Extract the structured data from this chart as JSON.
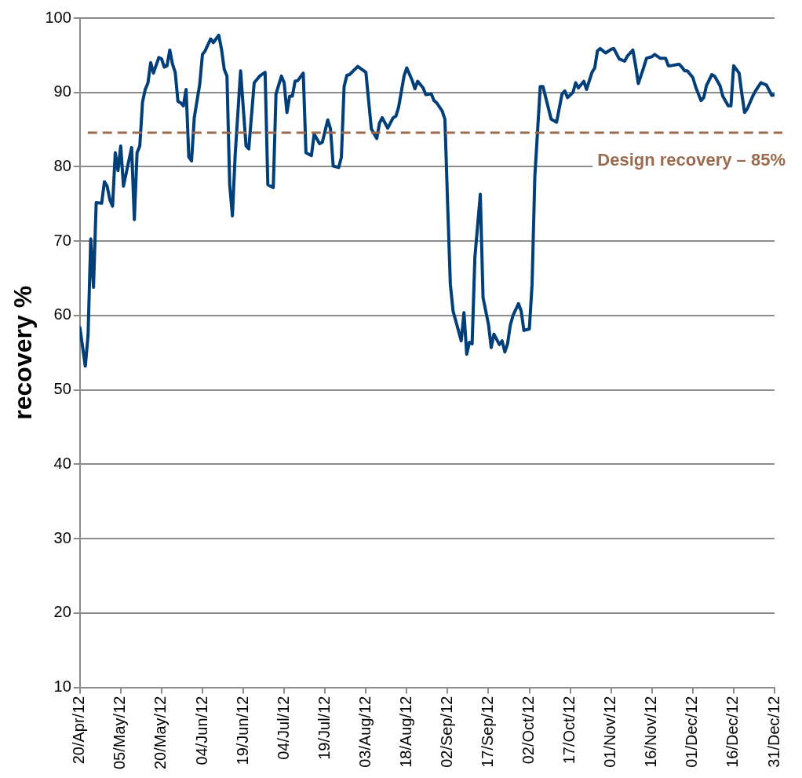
{
  "chart_data": {
    "type": "line",
    "ylabel": "recovery %",
    "ylim": [
      10,
      100
    ],
    "yticks": [
      10,
      20,
      30,
      40,
      50,
      60,
      70,
      80,
      90,
      100
    ],
    "xlim": [
      "--04-20",
      "--12-31"
    ],
    "xticks": [
      {
        "value": "--04-20",
        "label": "20/Apr/12"
      },
      {
        "value": "--05-05",
        "label": "05/May/12"
      },
      {
        "value": "--05-20",
        "label": "20/May/12"
      },
      {
        "value": "--06-04",
        "label": "04/Jun/12"
      },
      {
        "value": "--06-19",
        "label": "19/Jun/12"
      },
      {
        "value": "--07-04",
        "label": "04/Jul/12"
      },
      {
        "value": "--07-19",
        "label": "19/Jul/12"
      },
      {
        "value": "--08-03",
        "label": "03/Aug/12"
      },
      {
        "value": "--08-18",
        "label": "18/Aug/12"
      },
      {
        "value": "--09-02",
        "label": "02/Sep/12"
      },
      {
        "value": "--09-17",
        "label": "17/Sep/12"
      },
      {
        "value": "--10-02",
        "label": "02/Oct/12"
      },
      {
        "value": "--10-17",
        "label": "17/Oct/12"
      },
      {
        "value": "--11-01",
        "label": "01/Nov/12"
      },
      {
        "value": "--11-16",
        "label": "16/Nov/12"
      },
      {
        "value": "--12-01",
        "label": "01/Dec/12"
      },
      {
        "value": "--12-16",
        "label": "16/Dec/12"
      },
      {
        "value": "--12-31",
        "label": "31/Dec/12"
      }
    ],
    "grid": "y",
    "marker": "none",
    "line_style": "solid",
    "x": [
      "--04-20",
      "--04-22",
      "--04-23",
      "--04-24",
      "--04-25",
      "--04-26",
      "--04-28",
      "--04-29",
      "--04-30",
      "--05-01",
      "--05-02",
      "--05-03",
      "--05-04",
      "--05-05",
      "--05-06",
      "--05-09",
      "--05-10",
      "--05-11",
      "--05-12",
      "--05-13",
      "--05-14",
      "--05-15",
      "--05-16",
      "--05-17",
      "--05-19",
      "--05-20",
      "--05-21",
      "--05-22",
      "--05-23",
      "--05-24",
      "--05-25",
      "--05-26",
      "--05-27",
      "--05-28",
      "--05-29",
      "--05-30",
      "--05-31",
      "--06-01",
      "--06-03",
      "--06-04",
      "--06-05",
      "--06-07",
      "--06-08",
      "--06-10",
      "--06-11",
      "--06-12",
      "--06-13",
      "--06-14",
      "--06-15",
      "--06-16",
      "--06-18",
      "--06-20",
      "--06-21",
      "--06-23",
      "--06-25",
      "--06-27",
      "--06-28",
      "--06-30",
      "--07-01",
      "--07-03",
      "--07-04",
      "--07-05",
      "--07-06",
      "--07-07",
      "--07-08",
      "--07-09",
      "--07-11",
      "--07-12",
      "--07-14",
      "--07-15",
      "--07-17",
      "--07-18",
      "--07-20",
      "--07-21",
      "--07-22",
      "--07-24",
      "--07-25",
      "--07-26",
      "--07-27",
      "--07-28",
      "--07-31",
      "--08-03",
      "--08-05",
      "--08-07",
      "--08-08",
      "--08-09",
      "--08-11",
      "--08-12",
      "--08-13",
      "--08-14",
      "--08-15",
      "--08-17",
      "--08-18",
      "--08-20",
      "--08-21",
      "--08-22",
      "--08-24",
      "--08-25",
      "--08-27",
      "--08-28",
      "--08-29",
      "--08-31",
      "--09-01",
      "--09-02",
      "--09-03",
      "--09-04",
      "--09-07",
      "--09-08",
      "--09-09",
      "--09-10",
      "--09-11",
      "--09-12",
      "--09-14",
      "--09-15",
      "--09-17",
      "--09-18",
      "--09-19",
      "--09-21",
      "--09-22",
      "--09-23",
      "--09-24",
      "--09-25",
      "--09-26",
      "--09-28",
      "--09-29",
      "--09-30",
      "--10-02",
      "--10-03",
      "--10-04",
      "--10-06",
      "--10-07",
      "--10-10",
      "--10-12",
      "--10-14",
      "--10-15",
      "--10-16",
      "--10-18",
      "--10-19",
      "--10-20",
      "--10-22",
      "--10-23",
      "--10-25",
      "--10-26",
      "--10-27",
      "--10-28",
      "--10-30",
      "--11-01",
      "--11-02",
      "--11-04",
      "--11-06",
      "--11-07",
      "--11-09",
      "--11-10",
      "--11-11",
      "--11-13",
      "--11-14",
      "--11-16",
      "--11-17",
      "--11-19",
      "--11-21",
      "--11-22",
      "--11-23",
      "--11-26",
      "--11-27",
      "--11-28",
      "--11-29",
      "--12-01",
      "--12-02",
      "--12-04",
      "--12-05",
      "--12-06",
      "--12-08",
      "--12-09",
      "--12-11",
      "--12-12",
      "--12-14",
      "--12-15",
      "--12-16",
      "--12-18",
      "--12-19",
      "--12-20",
      "--12-21",
      "--12-23",
      "--12-24",
      "--12-26",
      "--12-28",
      "--12-29",
      "--12-30",
      "--12-31"
    ],
    "series": [
      {
        "color": "#003f7a",
        "values": [
          58.4,
          53.2,
          57.3,
          70.3,
          63.8,
          75.2,
          75.1,
          78.0,
          77.4,
          75.6,
          74.7,
          81.9,
          79.5,
          82.8,
          77.4,
          82.6,
          72.9,
          81.9,
          82.8,
          88.7,
          90.4,
          91.3,
          94.0,
          92.6,
          94.7,
          94.5,
          93.4,
          93.6,
          95.7,
          93.8,
          92.7,
          88.8,
          88.6,
          88.2,
          90.4,
          81.3,
          80.8,
          86.6,
          91.1,
          95.1,
          95.6,
          97.2,
          96.7,
          97.7,
          95.8,
          93.1,
          92.2,
          77.6,
          73.4,
          81.5,
          92.9,
          82.8,
          82.4,
          91.3,
          92.2,
          92.7,
          77.6,
          77.2,
          89.8,
          92.2,
          91.3,
          87.3,
          89.5,
          89.5,
          91.5,
          91.6,
          92.6,
          81.9,
          81.5,
          84.4,
          83.1,
          83.3,
          86.3,
          85.1,
          80.1,
          79.9,
          81.3,
          90.8,
          92.3,
          92.4,
          93.5,
          92.7,
          85.1,
          83.8,
          85.9,
          86.6,
          85.2,
          85.9,
          86.6,
          86.8,
          88.0,
          92.2,
          93.3,
          91.6,
          90.5,
          91.5,
          90.6,
          89.7,
          89.8,
          88.9,
          88.6,
          87.5,
          86.4,
          75.0,
          64.2,
          60.6,
          56.6,
          60.4,
          54.8,
          56.4,
          56.2,
          67.8,
          76.3,
          62.4,
          58.8,
          55.7,
          57.5,
          56.1,
          56.6,
          55.1,
          56.2,
          58.7,
          60.0,
          61.6,
          60.6,
          58.0,
          58.2,
          64.2,
          78.6,
          90.8,
          90.8,
          86.4,
          86.0,
          89.8,
          90.2,
          89.3,
          90.0,
          91.3,
          90.6,
          91.5,
          90.4,
          92.7,
          93.3,
          95.6,
          95.9,
          95.3,
          95.8,
          95.9,
          94.5,
          94.2,
          94.9,
          95.7,
          93.6,
          91.2,
          93.4,
          94.6,
          94.8,
          95.1,
          94.6,
          94.6,
          93.6,
          93.6,
          93.8,
          93.4,
          92.9,
          92.9,
          92.0,
          90.8,
          88.9,
          89.3,
          90.9,
          92.4,
          92.2,
          90.9,
          89.5,
          88.2,
          88.2,
          93.6,
          92.6,
          89.8,
          87.3,
          87.8,
          89.5,
          90.2,
          91.3,
          91.0,
          90.3,
          89.6,
          89.7
        ]
      }
    ],
    "ref_lines": [
      {
        "axis": "y",
        "value": 84.6,
        "label": "Design recovery – 85%",
        "color": "#9c6b4e",
        "line_style": "dashed"
      }
    ]
  }
}
